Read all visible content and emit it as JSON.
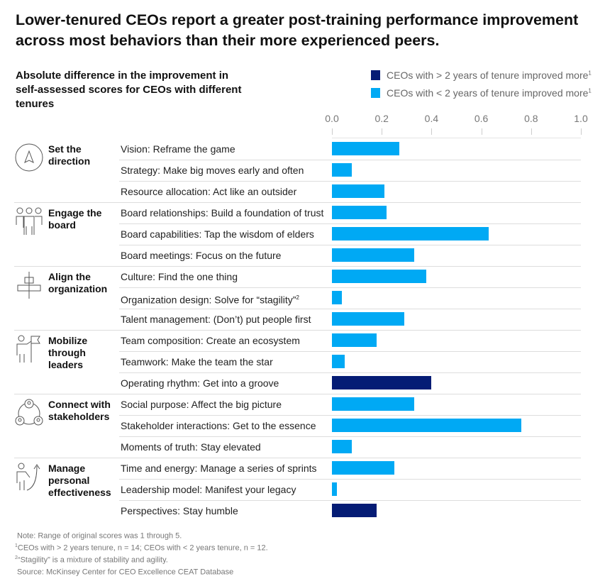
{
  "title": "Lower-tenured CEOs report a greater post-training performance improvement across most behaviors than their more experienced peers.",
  "subtitle": "Absolute difference in the improvement in self-assessed scores for CEOs with different tenures",
  "legend": [
    {
      "label": "CEOs with > 2 years of tenure improved more",
      "sup": "1",
      "color": "#051c75"
    },
    {
      "label": "CEOs with < 2 years of tenure improved more",
      "sup": "1",
      "color": "#00a9f4"
    }
  ],
  "chart_data": {
    "type": "bar",
    "orientation": "horizontal",
    "xlim": [
      0,
      1.0
    ],
    "xticks": [
      "0.0",
      "0.2",
      "0.4",
      "0.6",
      "0.8",
      "1.0"
    ],
    "grid": false,
    "legend_position": "top-right",
    "groups": [
      {
        "label": "Set the direction",
        "icon": "compass-arrow-icon",
        "items": [
          {
            "label": "Vision: Reframe the game",
            "value": 0.27,
            "series": 1
          },
          {
            "label": "Strategy: Make big moves early and often",
            "value": 0.08,
            "series": 1
          },
          {
            "label": "Resource allocation: Act like an outsider",
            "value": 0.21,
            "series": 1
          }
        ]
      },
      {
        "label": "Engage the board",
        "icon": "three-people-icon",
        "items": [
          {
            "label": "Board relationships: Build a foundation of trust",
            "value": 0.22,
            "series": 1
          },
          {
            "label": "Board capabilities: Tap the wisdom of elders",
            "value": 0.63,
            "series": 1
          },
          {
            "label": "Board meetings: Focus on the future",
            "value": 0.33,
            "series": 1
          }
        ]
      },
      {
        "label": "Align the organization",
        "icon": "alignment-icon",
        "items": [
          {
            "label": "Culture: Find the one thing",
            "value": 0.38,
            "series": 1
          },
          {
            "label": "Organization design: Solve for “stagility”",
            "sup": "2",
            "value": 0.04,
            "series": 1
          },
          {
            "label": "Talent management: (Don’t) put people first",
            "value": 0.29,
            "series": 1
          }
        ]
      },
      {
        "label": "Mobilize through leaders",
        "icon": "person-flag-icon",
        "items": [
          {
            "label": "Team composition: Create an ecosystem",
            "value": 0.18,
            "series": 1
          },
          {
            "label": "Teamwork: Make the team the star",
            "value": 0.05,
            "series": 1
          },
          {
            "label": "Operating rhythm: Get into a groove",
            "value": 0.4,
            "series": 0
          }
        ]
      },
      {
        "label": "Connect with stakeholders",
        "icon": "stakeholders-circle-icon",
        "items": [
          {
            "label": "Social purpose: Affect the big picture",
            "value": 0.33,
            "series": 1
          },
          {
            "label": "Stakeholder interactions: Get to the essence",
            "value": 0.76,
            "series": 1
          },
          {
            "label": "Moments of truth: Stay elevated",
            "value": 0.08,
            "series": 1
          }
        ]
      },
      {
        "label": "Manage personal effectiveness",
        "icon": "person-arrow-icon",
        "items": [
          {
            "label": "Time and energy: Manage a series of sprints",
            "value": 0.25,
            "series": 1
          },
          {
            "label": "Leadership model: Manifest your legacy",
            "value": 0.02,
            "series": 1
          },
          {
            "label": "Perspectives: Stay humble",
            "value": 0.18,
            "series": 0
          }
        ]
      }
    ]
  },
  "notes": [
    {
      "sup": "",
      "text": "Note: Range of original scores was 1 through 5."
    },
    {
      "sup": "1",
      "text": "CEOs with > 2 years tenure, n = 14; CEOs with < 2 years tenure, n = 12."
    },
    {
      "sup": "2",
      "text": "“Stagility” is a mixture of stability and agility."
    },
    {
      "sup": "",
      "text": "Source: McKinsey Center for CEO Excellence CEAT Database"
    }
  ]
}
